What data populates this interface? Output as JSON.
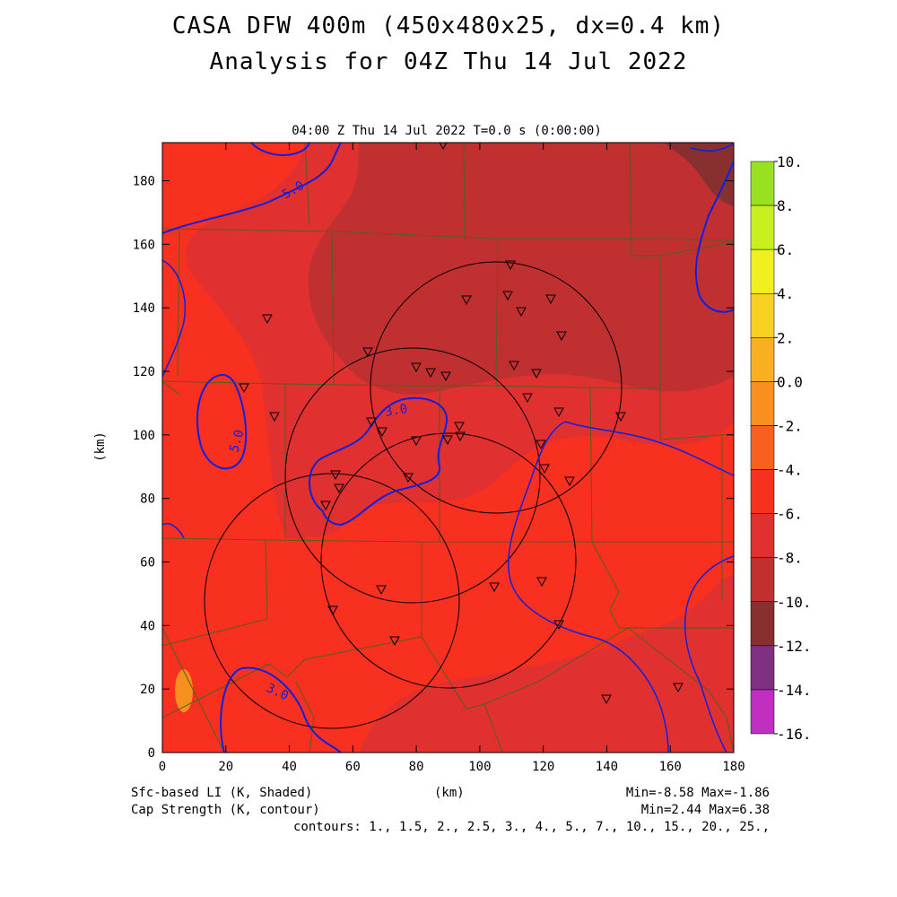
{
  "header": {
    "title_line1": "CASA DFW 400m (450x480x25, dx=0.4 km)",
    "title_line2": "Analysis for 04Z Thu 14 Jul 2022"
  },
  "plot": {
    "time_label": "04:00 Z Thu 14 Jul 2022   T=0.0 s (0:00:00)",
    "x_axis_label": "(km)",
    "y_axis_label": "(km)",
    "x_ticks": [
      "0",
      "20",
      "40",
      "60",
      "80",
      "100",
      "120",
      "140",
      "160",
      "180"
    ],
    "y_ticks": [
      "0",
      "20",
      "40",
      "60",
      "80",
      "100",
      "120",
      "140",
      "160",
      "180"
    ]
  },
  "colorbar": {
    "labels": [
      "10.",
      "8.",
      "6.",
      "4.",
      "2.",
      "0.0",
      "-2.",
      "-4.",
      "-6.",
      "-8.",
      "-10.",
      "-12.",
      "-14.",
      "-16."
    ],
    "colors": [
      "#98e020",
      "#c8f020",
      "#f0f020",
      "#f8d020",
      "#f8b020",
      "#f89020",
      "#f86020",
      "#f83020",
      "#e03030",
      "#c03030",
      "#883030",
      "#803080",
      "#c030c0",
      "#e040e0"
    ]
  },
  "contour_labels": [
    "5.0",
    "5.0",
    "3.0",
    "3.0"
  ],
  "footer": {
    "shaded_label": "Sfc-based LI (K, Shaded)",
    "contour_label": "Cap Strength (K, contour)",
    "x_units": "(km)",
    "shaded_minmax": "Min=-8.58 Max=-1.86",
    "contour_minmax": "Min=2.44 Max=6.38",
    "contour_levels": "contours: 1., 1.5, 2., 2.5, 3., 4., 5., 7., 10., 15., 20., 25.,"
  },
  "colors": {
    "field_min_shade": "#f83020",
    "field_mid_shade": "#e03030",
    "field_max_shade": "#c03030",
    "darkest_shade": "#883030",
    "contour": "#1020e0",
    "county_lines": "#506020"
  },
  "station_count": 40
}
